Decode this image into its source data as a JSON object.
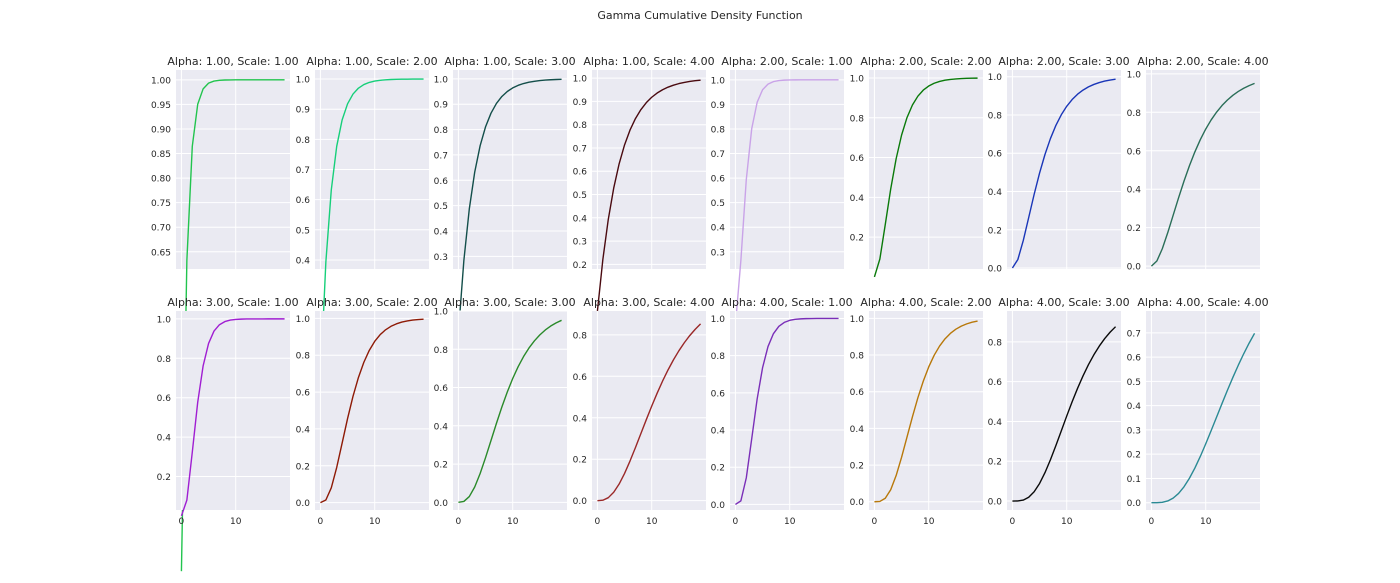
{
  "figure": {
    "title": "Gamma Cumulative Density Function"
  },
  "chart_data": [
    {
      "type": "line",
      "title": "Alpha: 1.00, Scale: 1.00",
      "alpha": 1,
      "scale": 1,
      "color": "#22c44e",
      "x": [
        0,
        1,
        2,
        3,
        4,
        5,
        6,
        7,
        8,
        9,
        10,
        11,
        12,
        13,
        14,
        15,
        16,
        17,
        18,
        19
      ],
      "xlim": [
        -1,
        20
      ],
      "ylim": [
        0.615,
        1.02
      ],
      "xticks": [
        0,
        10
      ],
      "yticks": [
        0.65,
        0.7,
        0.75,
        0.8,
        0.85,
        0.9,
        0.95,
        1.0
      ],
      "ytick_labels": [
        "0.65",
        "0.70",
        "0.75",
        "0.80",
        "0.85",
        "0.90",
        "0.95",
        "1.00"
      ],
      "grid": true,
      "show_xticks": false
    },
    {
      "type": "line",
      "title": "Alpha: 1.00, Scale: 2.00",
      "alpha": 1,
      "scale": 2,
      "color": "#16cf7a",
      "x": [
        0,
        1,
        2,
        3,
        4,
        5,
        6,
        7,
        8,
        9,
        10,
        11,
        12,
        13,
        14,
        15,
        16,
        17,
        18,
        19
      ],
      "xlim": [
        -1,
        20
      ],
      "ylim": [
        0.37,
        1.03
      ],
      "xticks": [
        0,
        10
      ],
      "yticks": [
        0.4,
        0.5,
        0.6,
        0.7,
        0.8,
        0.9,
        1.0
      ],
      "ytick_labels": [
        "0.4",
        "0.5",
        "0.6",
        "0.7",
        "0.8",
        "0.9",
        "1.0"
      ],
      "grid": true,
      "show_xticks": false
    },
    {
      "type": "line",
      "title": "Alpha: 1.00, Scale: 3.00",
      "alpha": 1,
      "scale": 3,
      "color": "#134e4a",
      "x": [
        0,
        1,
        2,
        3,
        4,
        5,
        6,
        7,
        8,
        9,
        10,
        11,
        12,
        13,
        14,
        15,
        16,
        17,
        18,
        19
      ],
      "xlim": [
        -1,
        20
      ],
      "ylim": [
        0.25,
        1.035
      ],
      "xticks": [
        0,
        10
      ],
      "yticks": [
        0.3,
        0.4,
        0.5,
        0.6,
        0.7,
        0.8,
        0.9,
        1.0
      ],
      "ytick_labels": [
        "0.3",
        "0.4",
        "0.5",
        "0.6",
        "0.7",
        "0.8",
        "0.9",
        "1.0"
      ],
      "grid": true,
      "show_xticks": false
    },
    {
      "type": "line",
      "title": "Alpha: 1.00, Scale: 4.00",
      "alpha": 1,
      "scale": 4,
      "color": "#4a0a10",
      "x": [
        0,
        1,
        2,
        3,
        4,
        5,
        6,
        7,
        8,
        9,
        10,
        11,
        12,
        13,
        14,
        15,
        16,
        17,
        18,
        19
      ],
      "xlim": [
        -1,
        20
      ],
      "ylim": [
        0.18,
        1.035
      ],
      "xticks": [
        0,
        10
      ],
      "yticks": [
        0.2,
        0.3,
        0.4,
        0.5,
        0.6,
        0.7,
        0.8,
        0.9,
        1.0
      ],
      "ytick_labels": [
        "0.2",
        "0.3",
        "0.4",
        "0.5",
        "0.6",
        "0.7",
        "0.8",
        "0.9",
        "1.0"
      ],
      "grid": true,
      "show_xticks": false
    },
    {
      "type": "line",
      "title": "Alpha: 2.00, Scale: 1.00",
      "alpha": 2,
      "scale": 1,
      "color": "#c9a3e8",
      "x": [
        0,
        1,
        2,
        3,
        4,
        5,
        6,
        7,
        8,
        9,
        10,
        11,
        12,
        13,
        14,
        15,
        16,
        17,
        18,
        19
      ],
      "xlim": [
        -1,
        20
      ],
      "ylim": [
        0.23,
        1.04
      ],
      "xticks": [
        0,
        10
      ],
      "yticks": [
        0.3,
        0.4,
        0.5,
        0.6,
        0.7,
        0.8,
        0.9,
        1.0
      ],
      "ytick_labels": [
        "0.3",
        "0.4",
        "0.5",
        "0.6",
        "0.7",
        "0.8",
        "0.9",
        "1.0"
      ],
      "grid": true,
      "show_xticks": false
    },
    {
      "type": "line",
      "title": "Alpha: 2.00, Scale: 2.00",
      "alpha": 2,
      "scale": 2,
      "color": "#0a7a0a",
      "x": [
        0,
        1,
        2,
        3,
        4,
        5,
        6,
        7,
        8,
        9,
        10,
        11,
        12,
        13,
        14,
        15,
        16,
        17,
        18,
        19
      ],
      "xlim": [
        -1,
        20
      ],
      "ylim": [
        0.04,
        1.04
      ],
      "xticks": [
        0,
        10
      ],
      "yticks": [
        0.2,
        0.4,
        0.6,
        0.8,
        1.0
      ],
      "ytick_labels": [
        "0.2",
        "0.4",
        "0.6",
        "0.8",
        "1.0"
      ],
      "grid": true,
      "show_xticks": false
    },
    {
      "type": "line",
      "title": "Alpha: 2.00, Scale: 3.00",
      "alpha": 2,
      "scale": 3,
      "color": "#1a36b8",
      "x": [
        0,
        1,
        2,
        3,
        4,
        5,
        6,
        7,
        8,
        9,
        10,
        11,
        12,
        13,
        14,
        15,
        16,
        17,
        18,
        19
      ],
      "xlim": [
        -1,
        20
      ],
      "ylim": [
        -0.005,
        1.035
      ],
      "xticks": [
        0,
        10
      ],
      "yticks": [
        0.0,
        0.2,
        0.4,
        0.6,
        0.8,
        1.0
      ],
      "ytick_labels": [
        "0.0",
        "0.2",
        "0.4",
        "0.6",
        "0.8",
        "1.0"
      ],
      "grid": true,
      "show_xticks": false
    },
    {
      "type": "line",
      "title": "Alpha: 2.00, Scale: 4.00",
      "alpha": 2,
      "scale": 4,
      "color": "#2a6e58",
      "x": [
        0,
        1,
        2,
        3,
        4,
        5,
        6,
        7,
        8,
        9,
        10,
        11,
        12,
        13,
        14,
        15,
        16,
        17,
        18,
        19
      ],
      "xlim": [
        -1,
        20
      ],
      "ylim": [
        -0.015,
        1.02
      ],
      "xticks": [
        0,
        10
      ],
      "yticks": [
        0.0,
        0.2,
        0.4,
        0.6,
        0.8,
        1.0
      ],
      "ytick_labels": [
        "0.0",
        "0.2",
        "0.4",
        "0.6",
        "0.8",
        "1.0"
      ],
      "grid": true,
      "show_xticks": false
    },
    {
      "type": "line",
      "title": "Alpha: 3.00, Scale: 1.00",
      "alpha": 3,
      "scale": 1,
      "color": "#a01ed2",
      "x": [
        0,
        1,
        2,
        3,
        4,
        5,
        6,
        7,
        8,
        9,
        10,
        11,
        12,
        13,
        14,
        15,
        16,
        17,
        18,
        19
      ],
      "xlim": [
        -1,
        20
      ],
      "ylim": [
        0.03,
        1.04
      ],
      "xticks": [
        0,
        10
      ],
      "yticks": [
        0.2,
        0.4,
        0.6,
        0.8,
        1.0
      ],
      "ytick_labels": [
        "0.2",
        "0.4",
        "0.6",
        "0.8",
        "1.0"
      ],
      "grid": true,
      "show_xticks": true
    },
    {
      "type": "line",
      "title": "Alpha: 3.00, Scale: 2.00",
      "alpha": 3,
      "scale": 2,
      "color": "#8e1a06",
      "x": [
        0,
        1,
        2,
        3,
        4,
        5,
        6,
        7,
        8,
        9,
        10,
        11,
        12,
        13,
        14,
        15,
        16,
        17,
        18,
        19
      ],
      "xlim": [
        -1,
        20
      ],
      "ylim": [
        -0.04,
        1.04
      ],
      "xticks": [
        0,
        10
      ],
      "yticks": [
        0.0,
        0.2,
        0.4,
        0.6,
        0.8,
        1.0
      ],
      "ytick_labels": [
        "0.0",
        "0.2",
        "0.4",
        "0.6",
        "0.8",
        "1.0"
      ],
      "grid": true,
      "show_xticks": true
    },
    {
      "type": "line",
      "title": "Alpha: 3.00, Scale: 3.00",
      "alpha": 3,
      "scale": 3,
      "color": "#2a8a2a",
      "x": [
        0,
        1,
        2,
        3,
        4,
        5,
        6,
        7,
        8,
        9,
        10,
        11,
        12,
        13,
        14,
        15,
        16,
        17,
        18,
        19
      ],
      "xlim": [
        -1,
        20
      ],
      "ylim": [
        -0.04,
        1.0
      ],
      "xticks": [
        0,
        10
      ],
      "yticks": [
        0.0,
        0.2,
        0.4,
        0.6,
        0.8,
        1.0
      ],
      "ytick_labels": [
        "0.0",
        "0.2",
        "0.4",
        "0.6",
        "0.8",
        "1.0"
      ],
      "grid": true,
      "show_xticks": true
    },
    {
      "type": "line",
      "title": "Alpha: 3.00, Scale: 4.00",
      "alpha": 3,
      "scale": 4,
      "color": "#9a2828",
      "x": [
        0,
        1,
        2,
        3,
        4,
        5,
        6,
        7,
        8,
        9,
        10,
        11,
        12,
        13,
        14,
        15,
        16,
        17,
        18,
        19
      ],
      "xlim": [
        -1,
        20
      ],
      "ylim": [
        -0.045,
        0.915
      ],
      "xticks": [
        0,
        10
      ],
      "yticks": [
        0.0,
        0.2,
        0.4,
        0.6,
        0.8
      ],
      "ytick_labels": [
        "0.0",
        "0.2",
        "0.4",
        "0.6",
        "0.8"
      ],
      "grid": true,
      "show_xticks": true
    },
    {
      "type": "line",
      "title": "Alpha: 4.00, Scale: 1.00",
      "alpha": 4,
      "scale": 1,
      "color": "#7a2eb8",
      "x": [
        0,
        1,
        2,
        3,
        4,
        5,
        6,
        7,
        8,
        9,
        10,
        11,
        12,
        13,
        14,
        15,
        16,
        17,
        18,
        19
      ],
      "xlim": [
        -1,
        20
      ],
      "ylim": [
        -0.03,
        1.04
      ],
      "xticks": [
        0,
        10
      ],
      "yticks": [
        0.0,
        0.2,
        0.4,
        0.6,
        0.8,
        1.0
      ],
      "ytick_labels": [
        "0.0",
        "0.2",
        "0.4",
        "0.6",
        "0.8",
        "1.0"
      ],
      "grid": true,
      "show_xticks": true
    },
    {
      "type": "line",
      "title": "Alpha: 4.00, Scale: 2.00",
      "alpha": 4,
      "scale": 2,
      "color": "#b8780a",
      "x": [
        0,
        1,
        2,
        3,
        4,
        5,
        6,
        7,
        8,
        9,
        10,
        11,
        12,
        13,
        14,
        15,
        16,
        17,
        18,
        19
      ],
      "xlim": [
        -1,
        20
      ],
      "ylim": [
        -0.045,
        1.04
      ],
      "xticks": [
        0,
        10
      ],
      "yticks": [
        0.0,
        0.2,
        0.4,
        0.6,
        0.8,
        1.0
      ],
      "ytick_labels": [
        "0.0",
        "0.2",
        "0.4",
        "0.6",
        "0.8",
        "1.0"
      ],
      "grid": true,
      "show_xticks": true
    },
    {
      "type": "line",
      "title": "Alpha: 4.00, Scale: 3.00",
      "alpha": 4,
      "scale": 3,
      "color": "#0a0a0a",
      "x": [
        0,
        1,
        2,
        3,
        4,
        5,
        6,
        7,
        8,
        9,
        10,
        11,
        12,
        13,
        14,
        15,
        16,
        17,
        18,
        19
      ],
      "xlim": [
        -1,
        20
      ],
      "ylim": [
        -0.045,
        0.955
      ],
      "xticks": [
        0,
        10
      ],
      "yticks": [
        0.0,
        0.2,
        0.4,
        0.6,
        0.8
      ],
      "ytick_labels": [
        "0.0",
        "0.2",
        "0.4",
        "0.6",
        "0.8"
      ],
      "grid": true,
      "show_xticks": true
    },
    {
      "type": "line",
      "title": "Alpha: 4.00, Scale: 4.00",
      "alpha": 4,
      "scale": 4,
      "color": "#2a8a94",
      "x": [
        0,
        1,
        2,
        3,
        4,
        5,
        6,
        7,
        8,
        9,
        10,
        11,
        12,
        13,
        14,
        15,
        16,
        17,
        18,
        19
      ],
      "xlim": [
        -1,
        20
      ],
      "ylim": [
        -0.03,
        0.79
      ],
      "xticks": [
        0,
        10
      ],
      "yticks": [
        0.0,
        0.1,
        0.2,
        0.3,
        0.4,
        0.5,
        0.6,
        0.7
      ],
      "ytick_labels": [
        "0.0",
        "0.1",
        "0.2",
        "0.3",
        "0.4",
        "0.5",
        "0.6",
        "0.7"
      ],
      "grid": true,
      "show_xticks": true
    }
  ]
}
